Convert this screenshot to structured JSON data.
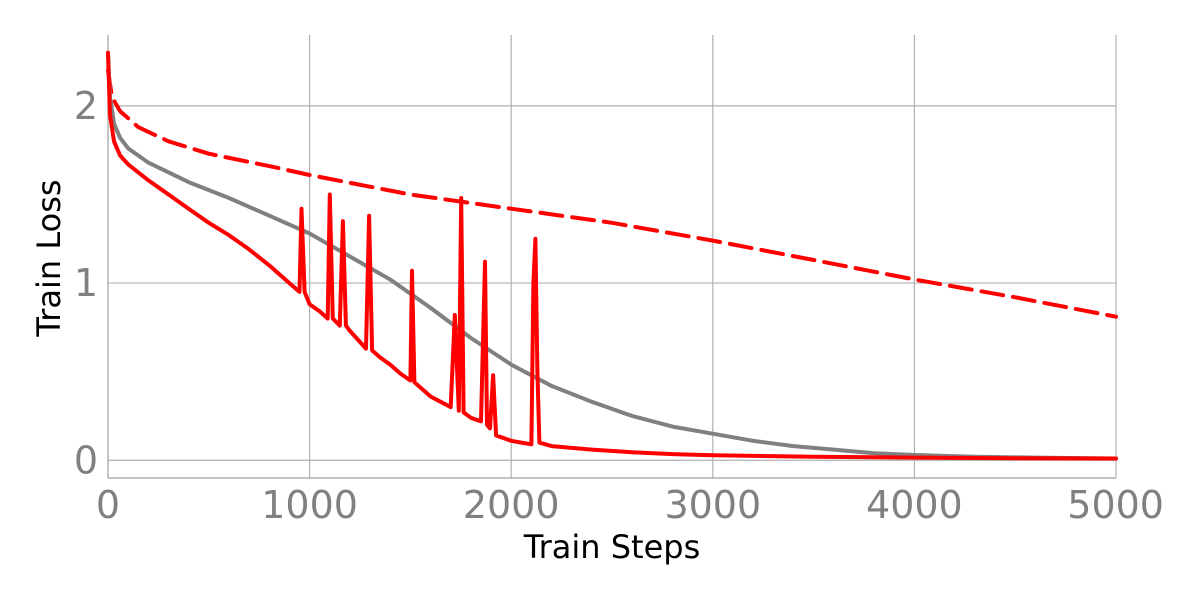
{
  "chart_data": {
    "type": "line",
    "title": "",
    "xlabel": "Train Steps",
    "ylabel": "Train Loss",
    "xlim": [
      0,
      5000
    ],
    "ylim": [
      -0.1,
      2.4
    ],
    "xticks": [
      0,
      1000,
      2000,
      3000,
      4000,
      5000
    ],
    "xtick_labels": [
      "0",
      "1000",
      "2000",
      "3000",
      "4000",
      "5000"
    ],
    "yticks": [
      0,
      1,
      2
    ],
    "ytick_labels": [
      "0",
      "1",
      "2"
    ],
    "grid": true,
    "legend": "none",
    "series": [
      {
        "color": "#ff0000",
        "style": "dashed",
        "x": [
          0,
          20,
          60,
          150,
          300,
          500,
          800,
          1000,
          1500,
          2000,
          2500,
          3000,
          3500,
          4000,
          4500,
          5000
        ],
        "y": [
          2.2,
          2.05,
          1.97,
          1.88,
          1.8,
          1.73,
          1.66,
          1.61,
          1.5,
          1.42,
          1.34,
          1.24,
          1.13,
          1.02,
          0.92,
          0.81
        ]
      },
      {
        "color": "#808080",
        "style": "solid",
        "x": [
          0,
          10,
          30,
          60,
          100,
          200,
          400,
          600,
          800,
          1000,
          1200,
          1400,
          1600,
          1800,
          2000,
          2200,
          2400,
          2600,
          2800,
          3000,
          3200,
          3400,
          3600,
          3800,
          4000,
          4300,
          4600,
          5000
        ],
        "y": [
          2.3,
          2.05,
          1.9,
          1.82,
          1.76,
          1.68,
          1.57,
          1.48,
          1.38,
          1.28,
          1.15,
          1.02,
          0.86,
          0.69,
          0.54,
          0.42,
          0.33,
          0.25,
          0.19,
          0.15,
          0.11,
          0.08,
          0.06,
          0.04,
          0.03,
          0.02,
          0.015,
          0.01
        ]
      },
      {
        "color": "#ff0000",
        "style": "solid",
        "x": [
          0,
          10,
          30,
          60,
          100,
          200,
          300,
          400,
          500,
          600,
          700,
          800,
          900,
          950,
          960,
          975,
          1000,
          1050,
          1090,
          1100,
          1115,
          1150,
          1165,
          1180,
          1200,
          1280,
          1295,
          1310,
          1350,
          1400,
          1450,
          1500,
          1508,
          1520,
          1560,
          1600,
          1650,
          1700,
          1720,
          1740,
          1752,
          1764,
          1800,
          1850,
          1870,
          1880,
          1895,
          1910,
          1925,
          1950,
          2000,
          2050,
          2100,
          2110,
          2120,
          2130,
          2140,
          2200,
          2400,
          2600,
          2800,
          3000,
          3500,
          4000,
          4500,
          5000
        ],
        "y": [
          2.3,
          1.95,
          1.8,
          1.72,
          1.67,
          1.58,
          1.5,
          1.42,
          1.34,
          1.27,
          1.19,
          1.1,
          1.0,
          0.95,
          1.42,
          0.95,
          0.88,
          0.84,
          0.8,
          1.5,
          0.8,
          0.76,
          1.35,
          0.76,
          0.73,
          0.63,
          1.38,
          0.62,
          0.58,
          0.54,
          0.49,
          0.45,
          1.07,
          0.44,
          0.4,
          0.36,
          0.33,
          0.3,
          0.82,
          0.28,
          1.48,
          0.27,
          0.24,
          0.22,
          1.12,
          0.2,
          0.18,
          0.48,
          0.14,
          0.13,
          0.11,
          0.1,
          0.09,
          1.0,
          1.25,
          0.5,
          0.1,
          0.08,
          0.06,
          0.045,
          0.035,
          0.028,
          0.02,
          0.015,
          0.012,
          0.01
        ]
      }
    ]
  }
}
